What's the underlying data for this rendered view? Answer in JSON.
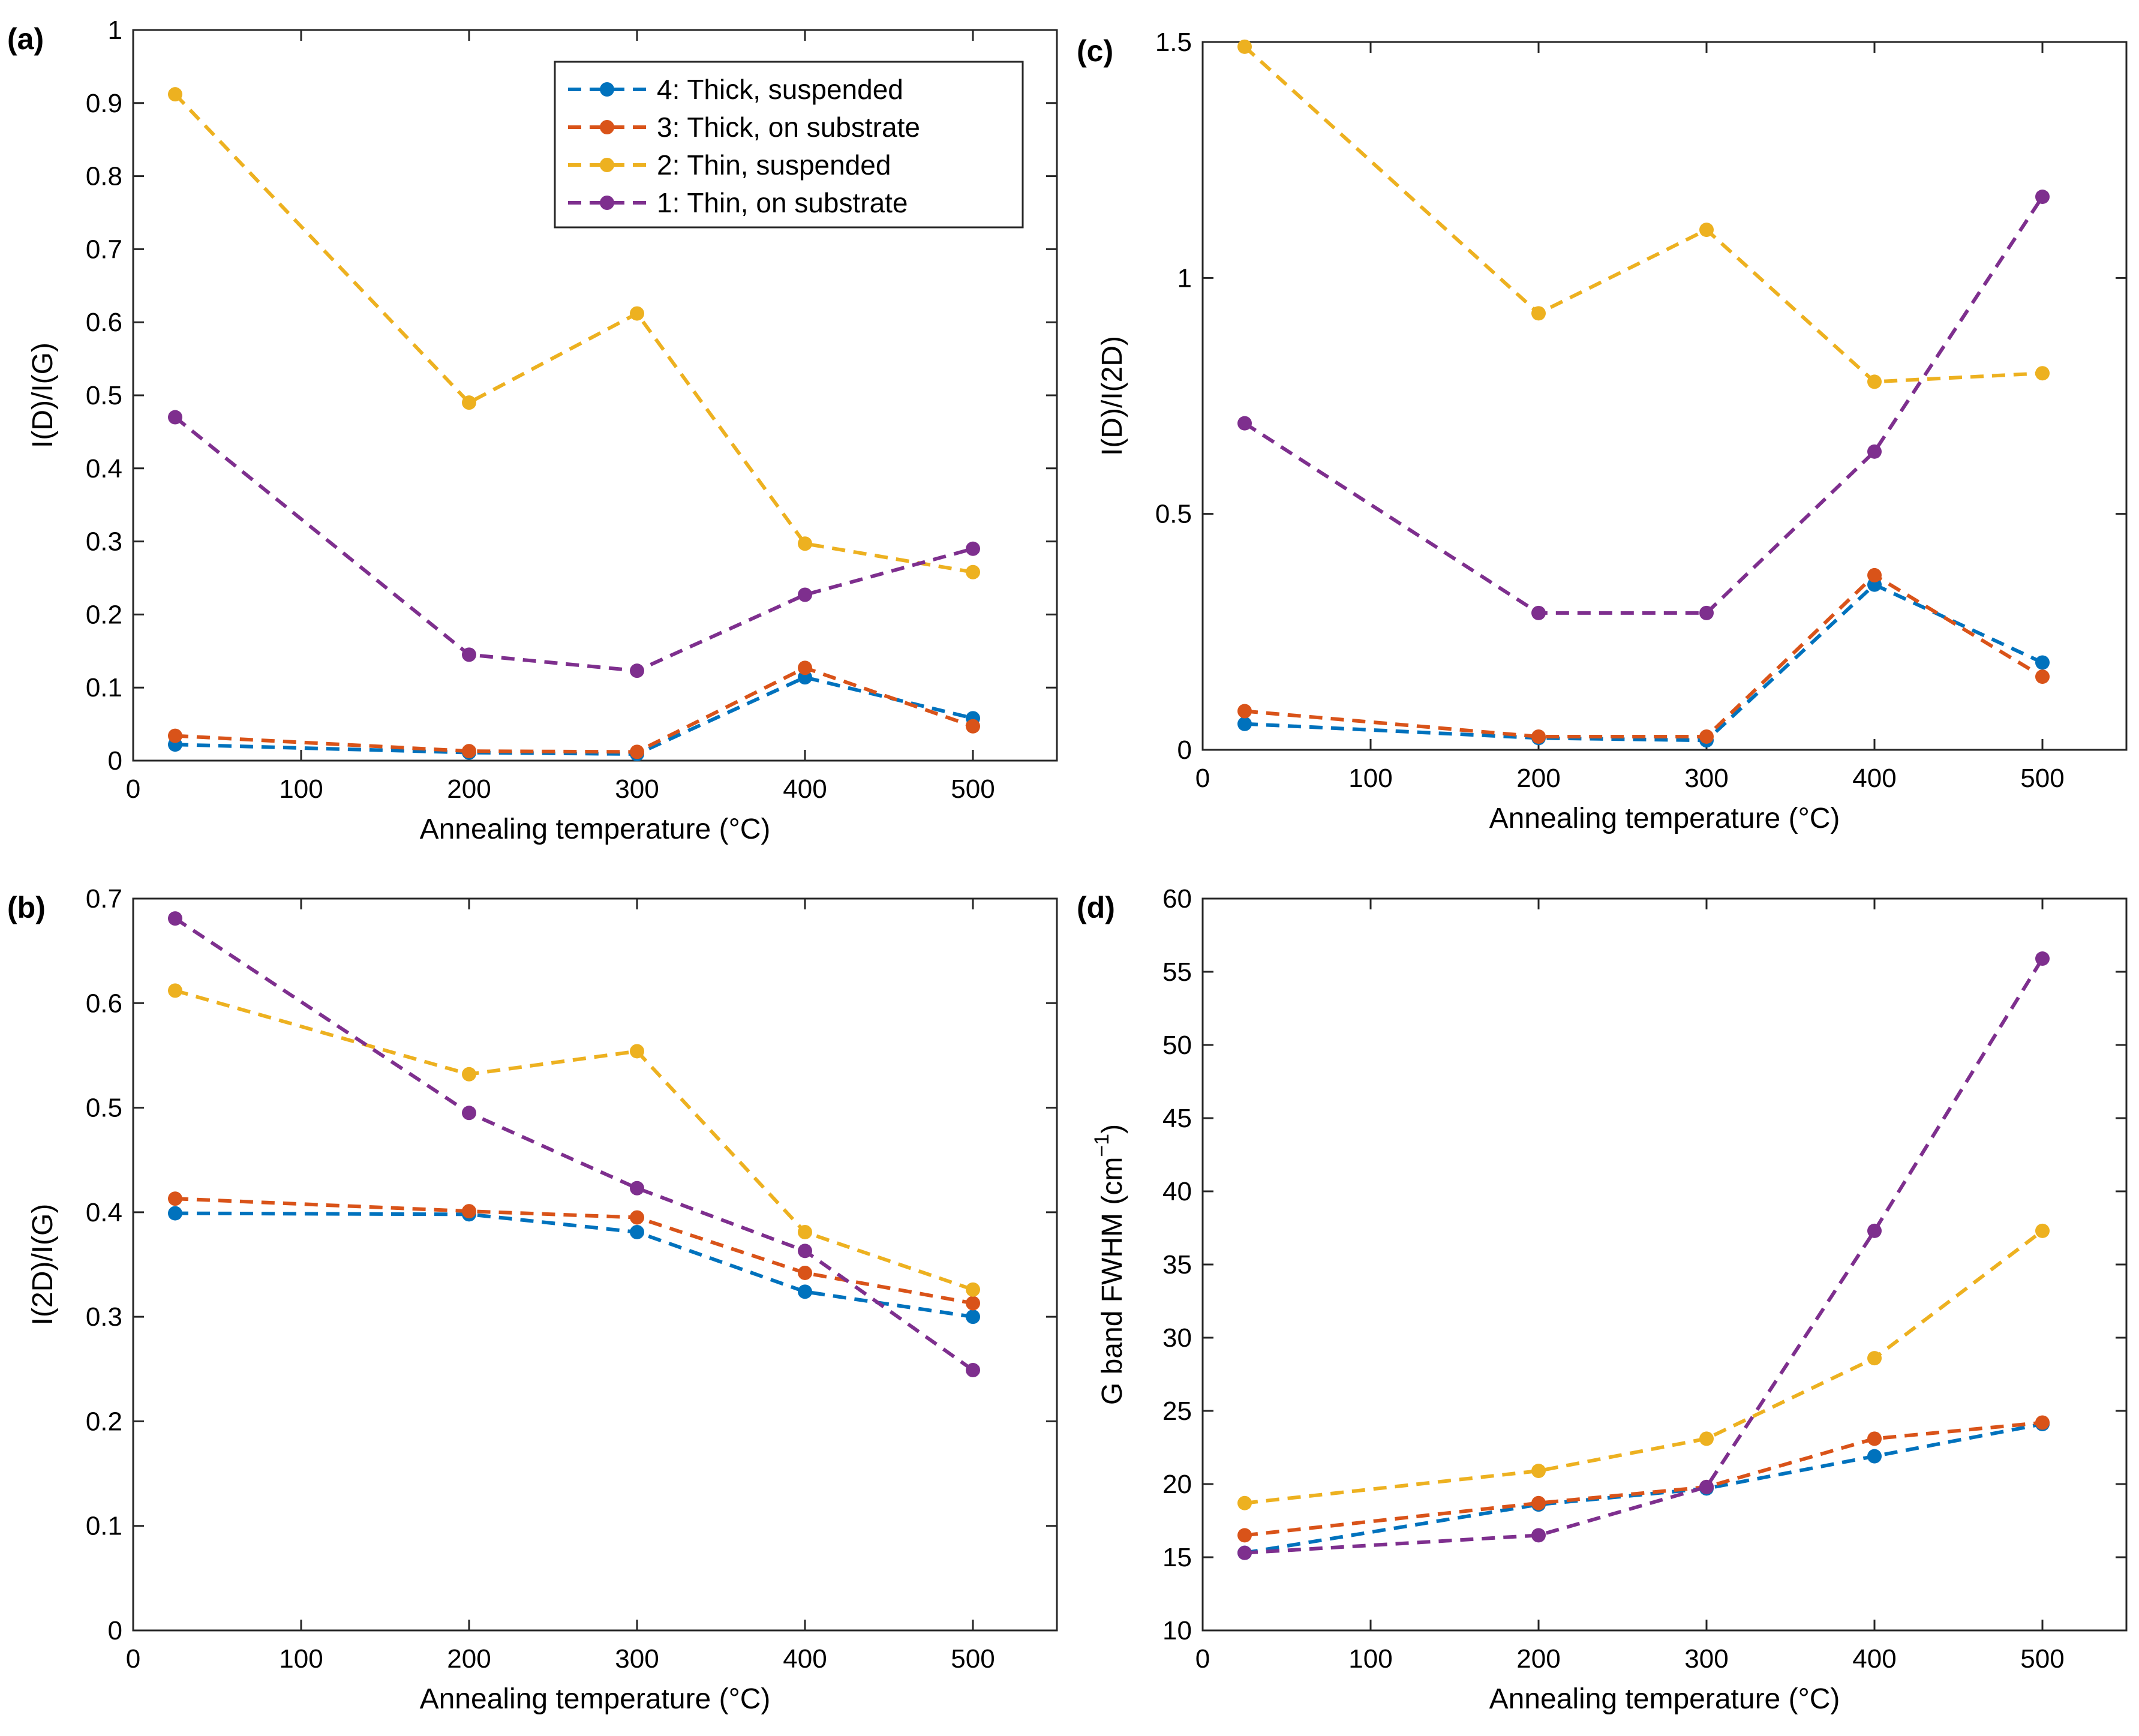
{
  "chart_data": [
    {
      "id": "a",
      "type": "line",
      "panel_label": "(a)",
      "xlabel": "Annealing temperature (°C)",
      "ylabel": "I(D)/I(G)",
      "xlim": [
        0,
        550
      ],
      "ylim": [
        0,
        1
      ],
      "xticks": [
        0,
        100,
        200,
        300,
        400,
        500
      ],
      "yticks": [
        0,
        0.1,
        0.2,
        0.3,
        0.4,
        0.5,
        0.6,
        0.7,
        0.8,
        0.9,
        1
      ],
      "ytick_labels": [
        "0",
        "0.1",
        "0.2",
        "0.3",
        "0.4",
        "0.5",
        "0.6",
        "0.7",
        "0.8",
        "0.9",
        "1"
      ],
      "legend": true,
      "x": [
        25,
        200,
        300,
        400,
        500
      ],
      "series": [
        {
          "name": "4: Thick, suspended",
          "color": "#0072BD",
          "values": [
            0.022,
            0.011,
            0.009,
            0.114,
            0.058
          ]
        },
        {
          "name": "3: Thick, on substrate",
          "color": "#D95319",
          "values": [
            0.034,
            0.013,
            0.012,
            0.127,
            0.047
          ]
        },
        {
          "name": "2: Thin, suspended",
          "color": "#EDB120",
          "values": [
            0.912,
            0.49,
            0.612,
            0.297,
            0.258
          ]
        },
        {
          "name": "1: Thin, on substrate",
          "color": "#7E2F8E",
          "values": [
            0.47,
            0.145,
            0.123,
            0.227,
            0.29
          ]
        }
      ]
    },
    {
      "id": "c",
      "type": "line",
      "panel_label": "(c)",
      "xlabel": "Annealing temperature (°C)",
      "ylabel": "I(D)/I(2D)",
      "xlim": [
        0,
        550
      ],
      "ylim": [
        0,
        1.5
      ],
      "xticks": [
        0,
        100,
        200,
        300,
        400,
        500
      ],
      "yticks": [
        0,
        0.5,
        1,
        1.5
      ],
      "ytick_labels": [
        "0",
        "0.5",
        "1",
        "1.5"
      ],
      "legend": false,
      "x": [
        25,
        200,
        300,
        400,
        500
      ],
      "series": [
        {
          "name": "4: Thick, suspended",
          "color": "#0072BD",
          "values": [
            0.055,
            0.025,
            0.02,
            0.35,
            0.185
          ]
        },
        {
          "name": "3: Thick, on substrate",
          "color": "#D95319",
          "values": [
            0.082,
            0.028,
            0.028,
            0.37,
            0.155
          ]
        },
        {
          "name": "2: Thin, suspended",
          "color": "#EDB120",
          "values": [
            1.49,
            0.925,
            1.102,
            0.78,
            0.798
          ]
        },
        {
          "name": "1: Thin, on substrate",
          "color": "#7E2F8E",
          "values": [
            0.692,
            0.29,
            0.29,
            0.632,
            1.172
          ]
        }
      ]
    },
    {
      "id": "b",
      "type": "line",
      "panel_label": "(b)",
      "xlabel": "Annealing temperature (°C)",
      "ylabel": "I(2D)/I(G)",
      "xlim": [
        0,
        550
      ],
      "ylim": [
        0,
        0.7
      ],
      "xticks": [
        0,
        100,
        200,
        300,
        400,
        500
      ],
      "yticks": [
        0,
        0.1,
        0.2,
        0.3,
        0.4,
        0.5,
        0.6,
        0.7
      ],
      "ytick_labels": [
        "0",
        "0.1",
        "0.2",
        "0.3",
        "0.4",
        "0.5",
        "0.6",
        "0.7"
      ],
      "legend": false,
      "x": [
        25,
        200,
        300,
        400,
        500
      ],
      "series": [
        {
          "name": "4: Thick, suspended",
          "color": "#0072BD",
          "values": [
            0.399,
            0.398,
            0.381,
            0.324,
            0.3
          ]
        },
        {
          "name": "3: Thick, on substrate",
          "color": "#D95319",
          "values": [
            0.413,
            0.401,
            0.395,
            0.342,
            0.313
          ]
        },
        {
          "name": "2: Thin, suspended",
          "color": "#EDB120",
          "values": [
            0.612,
            0.532,
            0.554,
            0.381,
            0.326
          ]
        },
        {
          "name": "1: Thin, on substrate",
          "color": "#7E2F8E",
          "values": [
            0.681,
            0.495,
            0.423,
            0.363,
            0.249
          ]
        }
      ]
    },
    {
      "id": "d",
      "type": "line",
      "panel_label": "(d)",
      "xlabel": "Annealing temperature (°C)",
      "ylabel": "G band FWHM (cm",
      "ylabel_sup": "−1",
      "ylabel_end": ")",
      "xlim": [
        0,
        550
      ],
      "ylim": [
        10,
        60
      ],
      "xticks": [
        0,
        100,
        200,
        300,
        400,
        500
      ],
      "yticks": [
        10,
        15,
        20,
        25,
        30,
        35,
        40,
        45,
        50,
        55,
        60
      ],
      "ytick_labels": [
        "10",
        "15",
        "20",
        "25",
        "30",
        "35",
        "40",
        "45",
        "50",
        "55",
        "60"
      ],
      "legend": false,
      "x": [
        25,
        200,
        300,
        400,
        500
      ],
      "series": [
        {
          "name": "4: Thick, suspended",
          "color": "#0072BD",
          "values": [
            15.3,
            18.6,
            19.7,
            21.9,
            24.1
          ]
        },
        {
          "name": "3: Thick, on substrate",
          "color": "#D95319",
          "values": [
            16.5,
            18.7,
            19.8,
            23.1,
            24.2
          ]
        },
        {
          "name": "2: Thin, suspended",
          "color": "#EDB120",
          "values": [
            18.7,
            20.9,
            23.1,
            28.6,
            37.3
          ]
        },
        {
          "name": "1: Thin, on substrate",
          "color": "#7E2F8E",
          "values": [
            15.3,
            16.5,
            19.8,
            37.3,
            55.9
          ]
        }
      ]
    }
  ]
}
